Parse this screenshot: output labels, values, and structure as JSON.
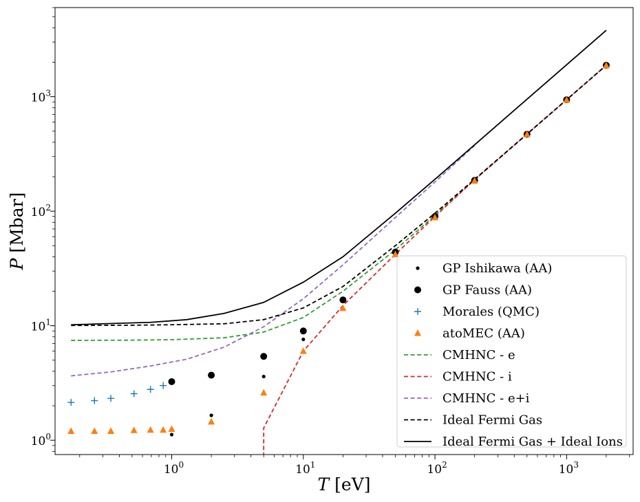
{
  "chart_data": {
    "type": "scatter",
    "xscale": "log",
    "yscale": "log",
    "xlabel_var": "T",
    "xlabel_unit": "[eV]",
    "ylabel_var": "P",
    "ylabel_unit": "[Mbar]",
    "xlim": [
      0.13,
      3200
    ],
    "ylim": [
      0.75,
      6000
    ],
    "xticks": [
      {
        "value": 1,
        "base": "10",
        "exp": "0"
      },
      {
        "value": 10,
        "base": "10",
        "exp": "1"
      },
      {
        "value": 100,
        "base": "10",
        "exp": "2"
      },
      {
        "value": 1000,
        "base": "10",
        "exp": "3"
      }
    ],
    "yticks": [
      {
        "value": 1,
        "base": "10",
        "exp": "0"
      },
      {
        "value": 10,
        "base": "10",
        "exp": "1"
      },
      {
        "value": 100,
        "base": "10",
        "exp": "2"
      },
      {
        "value": 1000,
        "base": "10",
        "exp": "3"
      }
    ],
    "grid": false,
    "legend_position": "bottom-right",
    "series": [
      {
        "name": "GP Ishikawa (AA)",
        "kind": "marker",
        "marker": "small-dot",
        "color": "#000000",
        "points": [
          [
            1.0,
            1.12
          ],
          [
            2.0,
            1.65
          ],
          [
            5.0,
            3.6
          ],
          [
            10.0,
            7.6
          ],
          [
            20.0,
            16.5
          ],
          [
            50.0,
            44.0
          ],
          [
            100.0,
            90.0
          ],
          [
            200.0,
            186.0
          ],
          [
            500.0,
            470.0
          ],
          [
            1000.0,
            940.0
          ],
          [
            2000.0,
            1880.0
          ]
        ]
      },
      {
        "name": "GP Fauss (AA)",
        "kind": "marker",
        "marker": "dot",
        "color": "#000000",
        "points": [
          [
            1.0,
            3.25
          ],
          [
            2.0,
            3.7
          ],
          [
            5.0,
            5.4
          ],
          [
            10.0,
            9.0
          ],
          [
            20.0,
            16.8
          ],
          [
            50.0,
            44.0
          ],
          [
            100.0,
            90.0
          ],
          [
            200.0,
            186.0
          ],
          [
            500.0,
            470.0
          ],
          [
            1000.0,
            940.0
          ],
          [
            2000.0,
            1880.0
          ]
        ]
      },
      {
        "name": "Morales (QMC)",
        "kind": "marker",
        "marker": "plus",
        "color": "#1f77b4",
        "points": [
          [
            0.172,
            2.14
          ],
          [
            0.259,
            2.22
          ],
          [
            0.345,
            2.32
          ],
          [
            0.517,
            2.55
          ],
          [
            0.69,
            2.78
          ],
          [
            0.862,
            3.0
          ]
        ]
      },
      {
        "name": "atoMEC (AA)",
        "kind": "marker",
        "marker": "triangle",
        "color": "#ff7f0e",
        "points": [
          [
            0.172,
            1.2
          ],
          [
            0.259,
            1.2
          ],
          [
            0.345,
            1.2
          ],
          [
            0.517,
            1.22
          ],
          [
            0.69,
            1.23
          ],
          [
            0.862,
            1.23
          ],
          [
            1.0,
            1.25
          ],
          [
            2.0,
            1.45
          ],
          [
            5.0,
            2.6
          ],
          [
            10.0,
            6.0
          ],
          [
            20.0,
            14.2
          ],
          [
            50.0,
            42.0
          ],
          [
            100.0,
            88.0
          ],
          [
            200.0,
            184.0
          ],
          [
            500.0,
            468.0
          ],
          [
            1000.0,
            935.0
          ],
          [
            2000.0,
            1870.0
          ]
        ]
      },
      {
        "name": "CMHNC - e",
        "kind": "line",
        "dash": "dashed",
        "color": "#2ca02c",
        "points": [
          [
            0.172,
            7.45
          ],
          [
            0.5,
            7.48
          ],
          [
            1.0,
            7.55
          ],
          [
            2.5,
            7.85
          ],
          [
            5.0,
            8.8
          ],
          [
            10.0,
            11.8
          ],
          [
            20.0,
            20.0
          ],
          [
            50.0,
            46.0
          ],
          [
            100.0,
            92.0
          ],
          [
            200.0,
            188.0
          ],
          [
            500.0,
            470.0
          ],
          [
            1000.0,
            940.0
          ],
          [
            2000.0,
            1880.0
          ]
        ]
      },
      {
        "name": "CMHNC - i",
        "kind": "line",
        "dash": "dashed",
        "color": "#d62728",
        "points": [
          [
            5.0,
            0.72
          ],
          [
            5.0,
            1.28
          ],
          [
            10.0,
            6.0
          ],
          [
            20.0,
            15.0
          ],
          [
            50.0,
            42.0
          ],
          [
            100.0,
            90.0
          ],
          [
            200.0,
            188.0
          ],
          [
            500.0,
            470.0
          ],
          [
            1000.0,
            940.0
          ],
          [
            2000.0,
            1880.0
          ]
        ]
      },
      {
        "name": "CMHNC - e+i",
        "kind": "line",
        "dash": "dashed",
        "color": "#9467bd",
        "points": [
          [
            0.172,
            3.65
          ],
          [
            0.345,
            3.95
          ],
          [
            0.69,
            4.45
          ],
          [
            1.3,
            5.1
          ],
          [
            2.5,
            6.5
          ],
          [
            5.0,
            9.8
          ],
          [
            10.0,
            17.2
          ],
          [
            20.0,
            34.0
          ],
          [
            50.0,
            88.0
          ],
          [
            100.0,
            180.0
          ],
          [
            200.0,
            375.0
          ]
        ]
      },
      {
        "name": "Ideal Fermi Gas",
        "kind": "line",
        "dash": "dashed",
        "color": "#000000",
        "points": [
          [
            0.172,
            10.05
          ],
          [
            0.5,
            10.1
          ],
          [
            1.0,
            10.2
          ],
          [
            2.5,
            10.4
          ],
          [
            5.0,
            11.3
          ],
          [
            10.0,
            14.3
          ],
          [
            20.0,
            22.0
          ],
          [
            50.0,
            50.0
          ],
          [
            100.0,
            96.0
          ],
          [
            200.0,
            190.0
          ],
          [
            500.0,
            472.0
          ],
          [
            1000.0,
            942.0
          ],
          [
            2000.0,
            1880.0
          ]
        ]
      },
      {
        "name": "Ideal Fermi Gas + Ideal Ions",
        "kind": "line",
        "dash": "solid",
        "color": "#000000",
        "points": [
          [
            0.172,
            10.2
          ],
          [
            0.69,
            10.7
          ],
          [
            1.3,
            11.3
          ],
          [
            2.5,
            12.8
          ],
          [
            5.0,
            16.0
          ],
          [
            10.0,
            24.0
          ],
          [
            20.0,
            40.0
          ],
          [
            50.0,
            96.0
          ],
          [
            100.0,
            190.0
          ],
          [
            200.0,
            380.0
          ],
          [
            500.0,
            950.0
          ],
          [
            1000.0,
            1900.0
          ],
          [
            2000.0,
            3800.0
          ]
        ]
      }
    ]
  }
}
